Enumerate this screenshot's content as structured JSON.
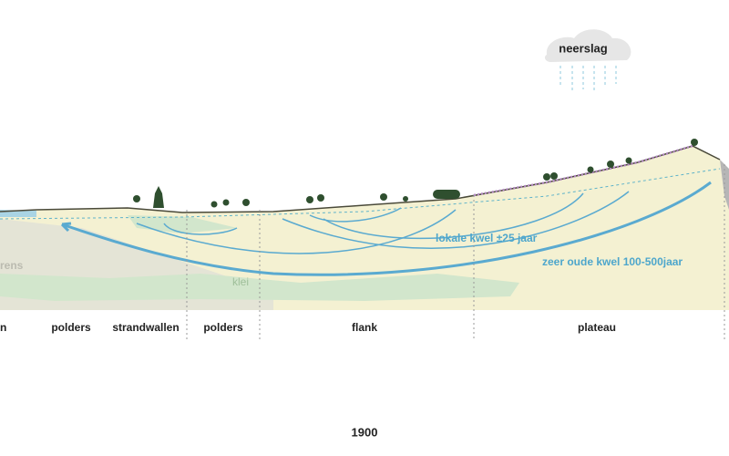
{
  "cloud": {
    "label": "neerslag"
  },
  "annotations": {
    "local_seepage": "lokale kwel ±25 jaar",
    "old_seepage": "zeer oude kwel 100-500jaar",
    "border": "rens",
    "clay": "klei"
  },
  "zones": [
    "n",
    "polders",
    "strandwallen",
    "polders",
    "flank",
    "plateau"
  ],
  "footer": {
    "year": "1900"
  }
}
